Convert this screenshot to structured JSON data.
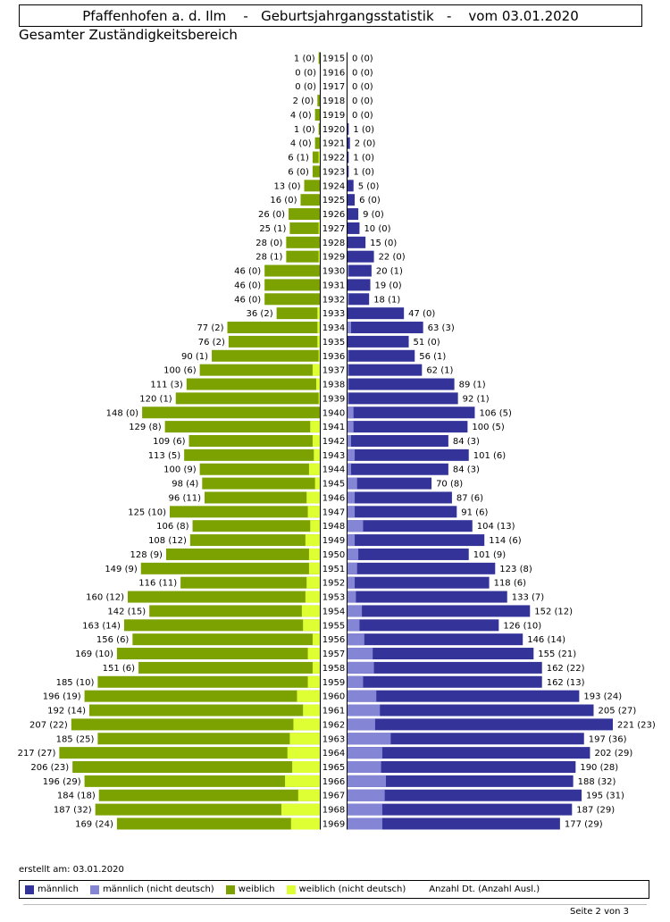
{
  "header": {
    "title": "Pfaffenhofen a. d. Ilm    -   Geburtsjahrgangsstatistik   -    vom 03.01.2020",
    "subtitle": "Gesamter Zuständigkeitsbereich"
  },
  "colors": {
    "male": "#33339a",
    "male_foreign": "#8585d6",
    "female": "#7ba200",
    "female_foreign": "#ddff33",
    "axis": "#000000"
  },
  "chart_data": {
    "type": "bar",
    "orientation": "horizontal-population-pyramid",
    "categories": [
      1915,
      1916,
      1917,
      1918,
      1919,
      1920,
      1921,
      1922,
      1923,
      1924,
      1925,
      1926,
      1927,
      1928,
      1929,
      1930,
      1931,
      1932,
      1933,
      1934,
      1935,
      1936,
      1937,
      1938,
      1939,
      1940,
      1941,
      1942,
      1943,
      1944,
      1945,
      1946,
      1947,
      1948,
      1949,
      1950,
      1951,
      1952,
      1953,
      1954,
      1955,
      1956,
      1957,
      1958,
      1959,
      1960,
      1961,
      1962,
      1963,
      1964,
      1965,
      1966,
      1967,
      1968,
      1969
    ],
    "series": [
      {
        "name": "weiblich",
        "values": [
          1,
          0,
          0,
          2,
          4,
          1,
          4,
          6,
          6,
          13,
          16,
          26,
          25,
          28,
          28,
          46,
          46,
          46,
          36,
          77,
          76,
          90,
          100,
          111,
          120,
          148,
          129,
          109,
          113,
          100,
          98,
          96,
          125,
          106,
          108,
          128,
          149,
          116,
          160,
          142,
          163,
          156,
          169,
          151,
          185,
          196,
          192,
          207,
          185,
          217,
          206,
          196,
          184,
          187,
          169
        ]
      },
      {
        "name": "weiblich (nicht deutsch)",
        "values": [
          0,
          0,
          0,
          0,
          0,
          0,
          0,
          1,
          0,
          0,
          0,
          0,
          1,
          0,
          1,
          0,
          0,
          0,
          2,
          2,
          2,
          1,
          6,
          3,
          1,
          0,
          8,
          6,
          5,
          9,
          4,
          11,
          10,
          8,
          12,
          9,
          9,
          11,
          12,
          15,
          14,
          6,
          10,
          6,
          10,
          19,
          14,
          22,
          25,
          27,
          23,
          29,
          18,
          32,
          24
        ]
      },
      {
        "name": "männlich",
        "values": [
          0,
          0,
          0,
          0,
          0,
          1,
          2,
          1,
          1,
          5,
          6,
          9,
          10,
          15,
          22,
          20,
          19,
          18,
          47,
          63,
          51,
          56,
          62,
          89,
          92,
          106,
          100,
          84,
          101,
          84,
          70,
          87,
          91,
          104,
          114,
          101,
          123,
          118,
          133,
          152,
          126,
          146,
          155,
          162,
          162,
          193,
          205,
          221,
          197,
          202,
          190,
          188,
          195,
          187,
          177
        ]
      },
      {
        "name": "männlich (nicht deutsch)",
        "values": [
          0,
          0,
          0,
          0,
          0,
          0,
          0,
          0,
          0,
          0,
          0,
          0,
          0,
          0,
          0,
          1,
          0,
          1,
          0,
          3,
          0,
          1,
          1,
          1,
          1,
          5,
          5,
          3,
          6,
          3,
          8,
          6,
          6,
          13,
          6,
          9,
          8,
          6,
          7,
          12,
          10,
          14,
          21,
          22,
          13,
          24,
          27,
          23,
          36,
          29,
          28,
          32,
          31,
          29,
          29
        ]
      }
    ],
    "xlim": [
      0,
      221
    ],
    "legend_position": "bottom",
    "grid": false
  },
  "footer": {
    "created": "erstellt am: 03.01.2020",
    "legend": [
      {
        "key": "male",
        "label": "männlich"
      },
      {
        "key": "male_foreign",
        "label": "männlich (nicht deutsch)"
      },
      {
        "key": "female",
        "label": "weiblich"
      },
      {
        "key": "female_foreign",
        "label": "weiblich (nicht deutsch)"
      }
    ],
    "legend_note": "Anzahl Dt. (Anzahl Ausl.)",
    "page": "Seite 2 von  3"
  }
}
